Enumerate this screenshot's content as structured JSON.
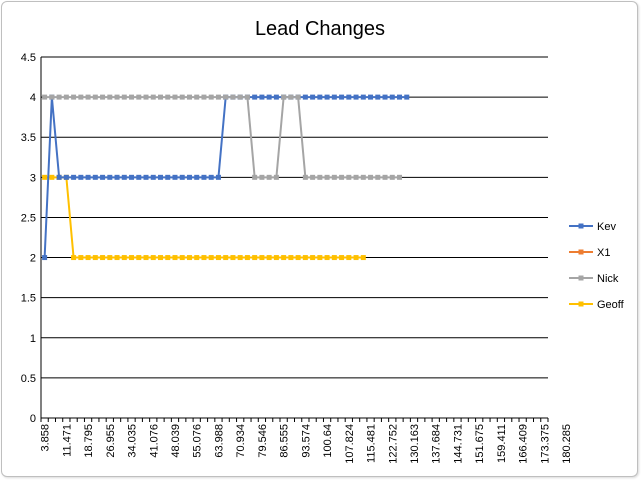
{
  "chart_data": {
    "type": "line",
    "title": "Lead Changes",
    "xlabel": "",
    "ylabel": "",
    "ylim": [
      0,
      4.5
    ],
    "ytick_labels": [
      "0",
      "0.5",
      "1",
      "1.5",
      "2",
      "2.5",
      "3",
      "3.5",
      "4",
      "4.5"
    ],
    "grid": true,
    "legend_position": "right",
    "x_tick_labels": [
      "3.858",
      "11.471",
      "18.795",
      "26.955",
      "34.035",
      "41.076",
      "48.039",
      "55.076",
      "63.988",
      "70.934",
      "79.546",
      "86.555",
      "93.574",
      "100.64",
      "107.824",
      "115.481",
      "122.752",
      "130.163",
      "137.684",
      "144.731",
      "151.675",
      "159.411",
      "166.409",
      "173.375",
      "180.285"
    ],
    "series": [
      {
        "name": "Kev",
        "color": "#4472C4",
        "values": [
          2,
          4,
          3,
          3,
          3,
          3,
          3,
          3,
          3,
          3,
          3,
          3,
          3,
          3,
          3,
          3,
          3,
          3,
          3,
          3,
          3,
          3,
          3,
          3,
          3,
          4,
          4,
          4,
          4,
          4,
          4,
          4,
          4,
          4,
          4,
          4,
          4,
          4,
          4,
          4,
          4,
          4,
          4,
          4,
          4,
          4,
          4,
          4,
          4,
          4,
          4
        ]
      },
      {
        "name": "X1",
        "color": "#ED7D31",
        "values": []
      },
      {
        "name": "Nick",
        "color": "#A5A5A5",
        "values": [
          4,
          4,
          4,
          4,
          4,
          4,
          4,
          4,
          4,
          4,
          4,
          4,
          4,
          4,
          4,
          4,
          4,
          4,
          4,
          4,
          4,
          4,
          4,
          4,
          4,
          4,
          4,
          4,
          4,
          3,
          3,
          3,
          3,
          4,
          4,
          4,
          3,
          3,
          3,
          3,
          3,
          3,
          3,
          3,
          3,
          3,
          3,
          3,
          3,
          3
        ]
      },
      {
        "name": "Geoff",
        "color": "#FFC000",
        "values": [
          3,
          3,
          3,
          3,
          2,
          2,
          2,
          2,
          2,
          2,
          2,
          2,
          2,
          2,
          2,
          2,
          2,
          2,
          2,
          2,
          2,
          2,
          2,
          2,
          2,
          2,
          2,
          2,
          2,
          2,
          2,
          2,
          2,
          2,
          2,
          2,
          2,
          2,
          2,
          2,
          2,
          2,
          2,
          2,
          2
        ]
      }
    ]
  }
}
